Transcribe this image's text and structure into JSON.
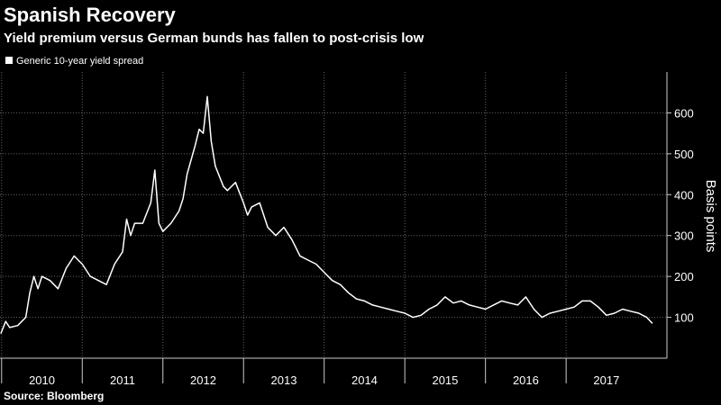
{
  "chart_data": {
    "type": "line",
    "title": "Spanish Recovery",
    "subtitle": "Yield premium versus German bunds has fallen to post-crisis low",
    "source": "Source: Bloomberg",
    "y_label": "Basis points",
    "xlim": [
      2009.98,
      2018.25
    ],
    "ylim": [
      0,
      700
    ],
    "yticks": [
      100,
      200,
      300,
      400,
      500,
      600
    ],
    "xticks": [
      {
        "value": 2010.5,
        "label": "2010"
      },
      {
        "value": 2011.5,
        "label": "2011"
      },
      {
        "value": 2012.5,
        "label": "2012"
      },
      {
        "value": 2013.5,
        "label": "2013"
      },
      {
        "value": 2014.5,
        "label": "2014"
      },
      {
        "value": 2015.5,
        "label": "2015"
      },
      {
        "value": 2016.5,
        "label": "2016"
      },
      {
        "value": 2017.5,
        "label": "2017"
      }
    ],
    "grid": true,
    "legend": "top-left",
    "x": [
      2009.99,
      2010.05,
      2010.1,
      2010.2,
      2010.3,
      2010.35,
      2010.4,
      2010.45,
      2010.5,
      2010.6,
      2010.7,
      2010.8,
      2010.9,
      2010.95,
      2011.0,
      2011.1,
      2011.2,
      2011.3,
      2011.4,
      2011.5,
      2011.55,
      2011.6,
      2011.65,
      2011.75,
      2011.85,
      2011.9,
      2011.95,
      2012.0,
      2012.1,
      2012.2,
      2012.25,
      2012.3,
      2012.4,
      2012.45,
      2012.5,
      2012.55,
      2012.6,
      2012.65,
      2012.75,
      2012.8,
      2012.9,
      2013.0,
      2013.05,
      2013.1,
      2013.2,
      2013.3,
      2013.4,
      2013.5,
      2013.6,
      2013.7,
      2013.8,
      2013.9,
      2014.0,
      2014.1,
      2014.2,
      2014.3,
      2014.4,
      2014.5,
      2014.6,
      2014.7,
      2014.8,
      2014.9,
      2015.0,
      2015.1,
      2015.2,
      2015.3,
      2015.4,
      2015.5,
      2015.6,
      2015.7,
      2015.8,
      2015.9,
      2016.0,
      2016.1,
      2016.2,
      2016.3,
      2016.4,
      2016.5,
      2016.6,
      2016.7,
      2016.8,
      2016.9,
      2017.0,
      2017.1,
      2017.2,
      2017.3,
      2017.4,
      2017.5,
      2017.6,
      2017.7,
      2017.8,
      2017.9,
      2018.0,
      2018.07
    ],
    "series": [
      {
        "name": "Generic 10-year yield spread",
        "color": "#ffffff",
        "values": [
          60,
          90,
          75,
          80,
          100,
          160,
          200,
          170,
          200,
          190,
          170,
          220,
          250,
          240,
          230,
          200,
          190,
          180,
          230,
          260,
          340,
          300,
          330,
          330,
          380,
          460,
          330,
          310,
          330,
          360,
          390,
          450,
          520,
          560,
          550,
          640,
          530,
          470,
          420,
          410,
          430,
          380,
          350,
          370,
          380,
          320,
          300,
          320,
          290,
          250,
          240,
          230,
          210,
          190,
          180,
          160,
          145,
          140,
          130,
          125,
          120,
          115,
          110,
          100,
          105,
          120,
          130,
          150,
          135,
          140,
          130,
          125,
          120,
          130,
          140,
          135,
          130,
          150,
          120,
          100,
          110,
          115,
          120,
          125,
          140,
          140,
          125,
          105,
          110,
          120,
          115,
          110,
          100,
          85
        ]
      }
    ]
  }
}
